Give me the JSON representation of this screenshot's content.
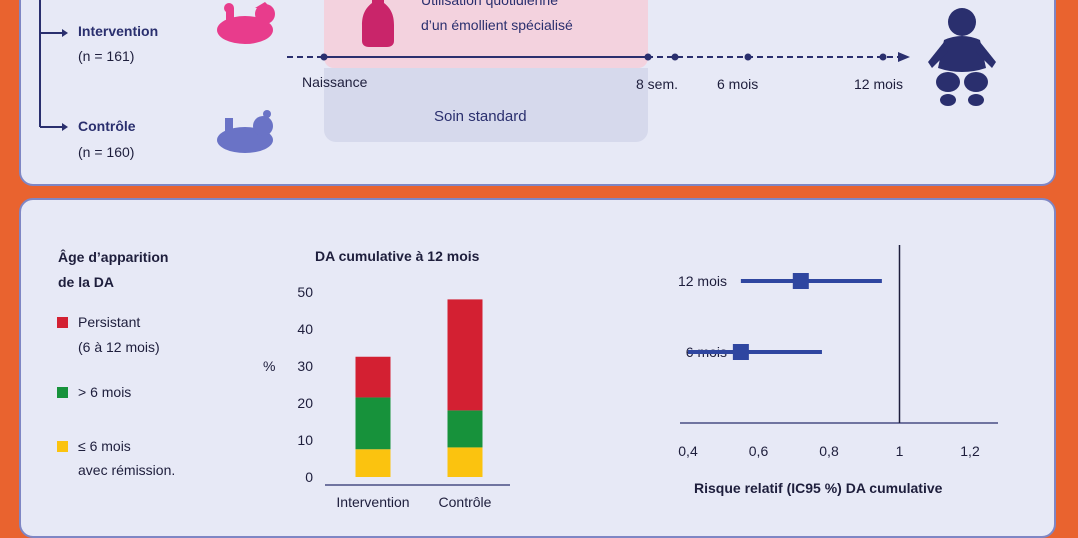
{
  "colors": {
    "navy": "#2a2f6e",
    "pink_band": "#f3d2de",
    "gray_band": "#d6d9ec",
    "pink_baby": "#e83c8c",
    "blue_baby": "#6a73c6",
    "bottle": "#c9256a",
    "persistant": "#d32032",
    "after6": "#17923b",
    "before6": "#fbc30f",
    "forest": "#2f46a0"
  },
  "timeline": {
    "groups": [
      {
        "name": "Intervention",
        "n": "(n = 161)",
        "icon": "baby-pink-icon"
      },
      {
        "name": "Contrôle",
        "n": "(n = 160)",
        "icon": "baby-blue-icon"
      }
    ],
    "emollient_text_1": "Utilisation quotidienne",
    "emollient_text_2": "d’un émollient spécialisé",
    "standard_care": "Soin standard",
    "points": [
      "Naissance",
      "8 sem.",
      "6 mois",
      "12 mois"
    ]
  },
  "legend": {
    "title_1": "Âge d’apparition",
    "title_2": "de la DA",
    "items": [
      {
        "line1": "Persistant",
        "line2": "(6 à 12 mois)",
        "color": "#d32032"
      },
      {
        "line1": "> 6 mois",
        "line2": "",
        "color": "#17923b"
      },
      {
        "line1": "≤ 6 mois",
        "line2": "avec rémission.",
        "color": "#fbc30f"
      }
    ]
  },
  "chart_data": [
    {
      "type": "bar",
      "title": "DA cumulative à 12 mois",
      "ylabel": "%",
      "ylim": [
        0,
        50
      ],
      "yticks": [
        0,
        10,
        20,
        30,
        40,
        50
      ],
      "categories": [
        "Intervention",
        "Contrôle"
      ],
      "stacked": true,
      "series": [
        {
          "color": "#fbc30f",
          "values": [
            7.5,
            8
          ]
        },
        {
          "color": "#17923b",
          "values": [
            14,
            10
          ]
        },
        {
          "color": "#d32032",
          "values": [
            11,
            30
          ]
        }
      ]
    },
    {
      "type": "scatter",
      "subtype": "forest",
      "xlabel": "Risque relatif (IC95 %) DA cumulative",
      "xlim": [
        0.4,
        1.2
      ],
      "xticks": [
        "0,4",
        "0,6",
        "0,8",
        "1",
        "1,2"
      ],
      "xtick_values": [
        0.4,
        0.6,
        0.8,
        1.0,
        1.2
      ],
      "reference_line": 1.0,
      "rows": [
        {
          "label": "12 mois",
          "estimate": 0.72,
          "low": 0.55,
          "high": 0.95
        },
        {
          "label": "6 mois",
          "estimate": 0.55,
          "low": 0.4,
          "high": 0.78
        }
      ]
    }
  ]
}
